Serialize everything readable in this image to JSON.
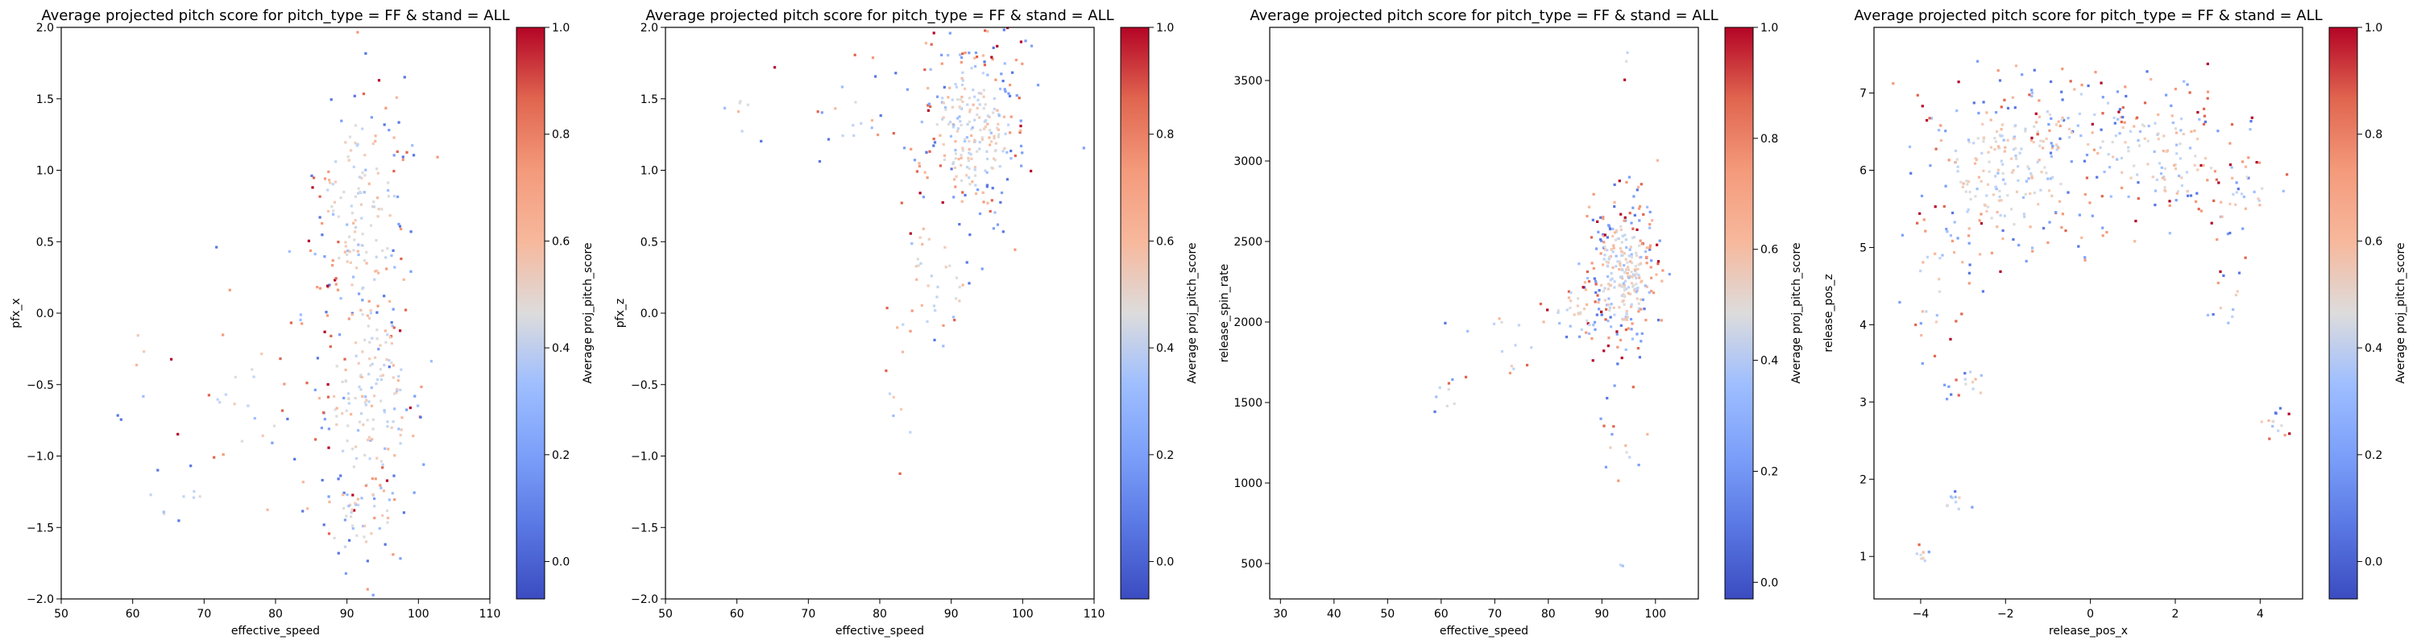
{
  "figure": {
    "background": "#ffffff",
    "marker_colormap": "coolwarm"
  },
  "chart_data": [
    {
      "type": "scatter",
      "title": "Average projected pitch score for pitch_type = FF & stand = ALL",
      "xlabel": "effective_speed",
      "ylabel": "pfx_x",
      "xlim": [
        50,
        110
      ],
      "ylim": [
        -2.0,
        2.0
      ],
      "xticks": [
        50,
        60,
        70,
        80,
        90,
        100,
        110
      ],
      "xtick_labels": [
        "50",
        "60",
        "70",
        "80",
        "90",
        "100",
        "110"
      ],
      "yticks": [
        -2.0,
        -1.5,
        -1.0,
        -0.5,
        0.0,
        0.5,
        1.0,
        1.5,
        2.0
      ],
      "ytick_labels": [
        "−2.0",
        "−1.5",
        "−1.0",
        "−0.5",
        "0.0",
        "0.5",
        "1.0",
        "1.5",
        "2.0"
      ],
      "colorbar": {
        "label": "Average proj_pitch_score",
        "ticks": [
          0.0,
          0.2,
          0.4,
          0.6,
          0.8,
          1.0
        ],
        "tick_labels": [
          "0.0",
          "0.2",
          "0.4",
          "0.6",
          "0.8",
          "1.0"
        ],
        "range": [
          -0.07,
          1.0
        ]
      },
      "clusters": [
        {
          "cx": 92,
          "cy": 0.75,
          "sx": 3.8,
          "sy": 0.45,
          "n": 170
        },
        {
          "cx": 93,
          "cy": -0.6,
          "sx": 4.0,
          "sy": 0.5,
          "n": 190
        },
        {
          "cx": 92,
          "cy": -1.45,
          "sx": 3.5,
          "sy": 0.18,
          "n": 50
        },
        {
          "cx": 76,
          "cy": -0.55,
          "sx": 3.5,
          "sy": 0.35,
          "n": 25
        },
        {
          "cx": 65,
          "cy": -1.3,
          "sx": 3.5,
          "sy": 0.12,
          "n": 10
        },
        {
          "cx": 61,
          "cy": -0.3,
          "sx": 2.5,
          "sy": 0.35,
          "n": 8
        }
      ]
    },
    {
      "type": "scatter",
      "title": "Average projected pitch score for pitch_type = FF & stand = ALL",
      "xlabel": "effective_speed",
      "ylabel": "pfx_z",
      "xlim": [
        50,
        110
      ],
      "ylim": [
        -2.0,
        2.0
      ],
      "xticks": [
        50,
        60,
        70,
        80,
        90,
        100,
        110
      ],
      "xtick_labels": [
        "50",
        "60",
        "70",
        "80",
        "90",
        "100",
        "110"
      ],
      "yticks": [
        -2.0,
        -1.5,
        -1.0,
        -0.5,
        0.0,
        0.5,
        1.0,
        1.5,
        2.0
      ],
      "ytick_labels": [
        "−2.0",
        "−1.5",
        "−1.0",
        "−0.5",
        "0.0",
        "0.5",
        "1.0",
        "1.5",
        "2.0"
      ],
      "colorbar": {
        "label": "Average proj_pitch_score",
        "ticks": [
          0.0,
          0.2,
          0.4,
          0.6,
          0.8,
          1.0
        ],
        "tick_labels": [
          "0.0",
          "0.2",
          "0.4",
          "0.6",
          "0.8",
          "1.0"
        ],
        "range": [
          -0.07,
          1.0
        ]
      },
      "clusters": [
        {
          "cx": 93,
          "cy": 1.3,
          "sx": 4.0,
          "sy": 0.32,
          "n": 280
        },
        {
          "cx": 88,
          "cy": 0.3,
          "sx": 3.0,
          "sy": 0.3,
          "n": 40
        },
        {
          "cx": 83,
          "cy": -0.5,
          "sx": 1.5,
          "sy": 0.35,
          "n": 10
        },
        {
          "cx": 76,
          "cy": 1.4,
          "sx": 3.0,
          "sy": 0.18,
          "n": 18
        },
        {
          "cx": 62,
          "cy": 1.4,
          "sx": 3.0,
          "sy": 0.15,
          "n": 8
        }
      ]
    },
    {
      "type": "scatter",
      "title": "Average projected pitch score for pitch_type = FF & stand = ALL",
      "xlabel": "effective_speed",
      "ylabel": "release_spin_rate",
      "xlim": [
        28,
        108
      ],
      "ylim": [
        280,
        3830
      ],
      "xticks": [
        30,
        40,
        50,
        60,
        70,
        80,
        90,
        100
      ],
      "xtick_labels": [
        "30",
        "40",
        "50",
        "60",
        "70",
        "80",
        "90",
        "100"
      ],
      "yticks": [
        500,
        1000,
        1500,
        2000,
        2500,
        3000,
        3500
      ],
      "ytick_labels": [
        "500",
        "1000",
        "1500",
        "2000",
        "2500",
        "3000",
        "3500"
      ],
      "colorbar": {
        "label": "Average proj_pitch_score",
        "ticks": [
          0.0,
          0.2,
          0.4,
          0.6,
          0.8,
          1.0
        ],
        "tick_labels": [
          "0.0",
          "0.2",
          "0.4",
          "0.6",
          "0.8",
          "1.0"
        ],
        "range": [
          -0.03,
          1.0
        ]
      },
      "clusters": [
        {
          "cx": 94,
          "cy": 2300,
          "sx": 3.3,
          "sy": 230,
          "n": 320
        },
        {
          "cx": 85,
          "cy": 2050,
          "sx": 3.0,
          "sy": 110,
          "n": 30
        },
        {
          "cx": 72,
          "cy": 1850,
          "sx": 4.0,
          "sy": 120,
          "n": 14
        },
        {
          "cx": 61,
          "cy": 1520,
          "sx": 2.0,
          "sy": 70,
          "n": 8
        },
        {
          "cx": 94,
          "cy": 1180,
          "sx": 2.0,
          "sy": 110,
          "n": 12
        },
        {
          "cx": 95,
          "cy": 3600,
          "sx": 1.2,
          "sy": 60,
          "n": 3
        },
        {
          "cx": 93,
          "cy": 500,
          "sx": 1.0,
          "sy": 40,
          "n": 2
        }
      ]
    },
    {
      "type": "scatter",
      "title": "Average projected pitch score for pitch_type = FF & stand = ALL",
      "xlabel": "release_pos_x",
      "ylabel": "release_pos_z",
      "xlim": [
        -5.1,
        5.0
      ],
      "ylim": [
        0.45,
        7.85
      ],
      "xticks": [
        -4,
        -2,
        0,
        2,
        4
      ],
      "xtick_labels": [
        "−4",
        "−2",
        "0",
        "2",
        "4"
      ],
      "yticks": [
        1,
        2,
        3,
        4,
        5,
        6,
        7
      ],
      "ytick_labels": [
        "1",
        "2",
        "3",
        "4",
        "5",
        "6",
        "7"
      ],
      "colorbar": {
        "label": "Average proj_pitch_score",
        "ticks": [
          0.0,
          0.2,
          0.4,
          0.6,
          0.8,
          1.0
        ],
        "tick_labels": [
          "0.0",
          "0.2",
          "0.4",
          "0.6",
          "0.8",
          "1.0"
        ],
        "range": [
          -0.07,
          1.0
        ]
      },
      "clusters": [
        {
          "cx": -2.0,
          "cy": 6.0,
          "sx": 1.1,
          "sy": 0.55,
          "n": 240
        },
        {
          "cx": 1.7,
          "cy": 6.2,
          "sx": 1.0,
          "sy": 0.45,
          "n": 150
        },
        {
          "cx": -0.2,
          "cy": 6.6,
          "sx": 0.7,
          "sy": 0.3,
          "n": 50
        },
        {
          "cx": 3.6,
          "cy": 5.7,
          "sx": 0.55,
          "sy": 0.3,
          "n": 30
        },
        {
          "cx": -3.6,
          "cy": 4.6,
          "sx": 0.4,
          "sy": 0.5,
          "n": 35
        },
        {
          "cx": 3.3,
          "cy": 4.3,
          "sx": 0.25,
          "sy": 0.25,
          "n": 12
        },
        {
          "cx": -2.8,
          "cy": 3.2,
          "sx": 0.25,
          "sy": 0.15,
          "n": 15
        },
        {
          "cx": -3.2,
          "cy": 1.7,
          "sx": 0.15,
          "sy": 0.08,
          "n": 10
        },
        {
          "cx": -4.0,
          "cy": 1.0,
          "sx": 0.1,
          "sy": 0.07,
          "n": 8
        },
        {
          "cx": 4.3,
          "cy": 2.7,
          "sx": 0.25,
          "sy": 0.1,
          "n": 14
        }
      ]
    }
  ]
}
